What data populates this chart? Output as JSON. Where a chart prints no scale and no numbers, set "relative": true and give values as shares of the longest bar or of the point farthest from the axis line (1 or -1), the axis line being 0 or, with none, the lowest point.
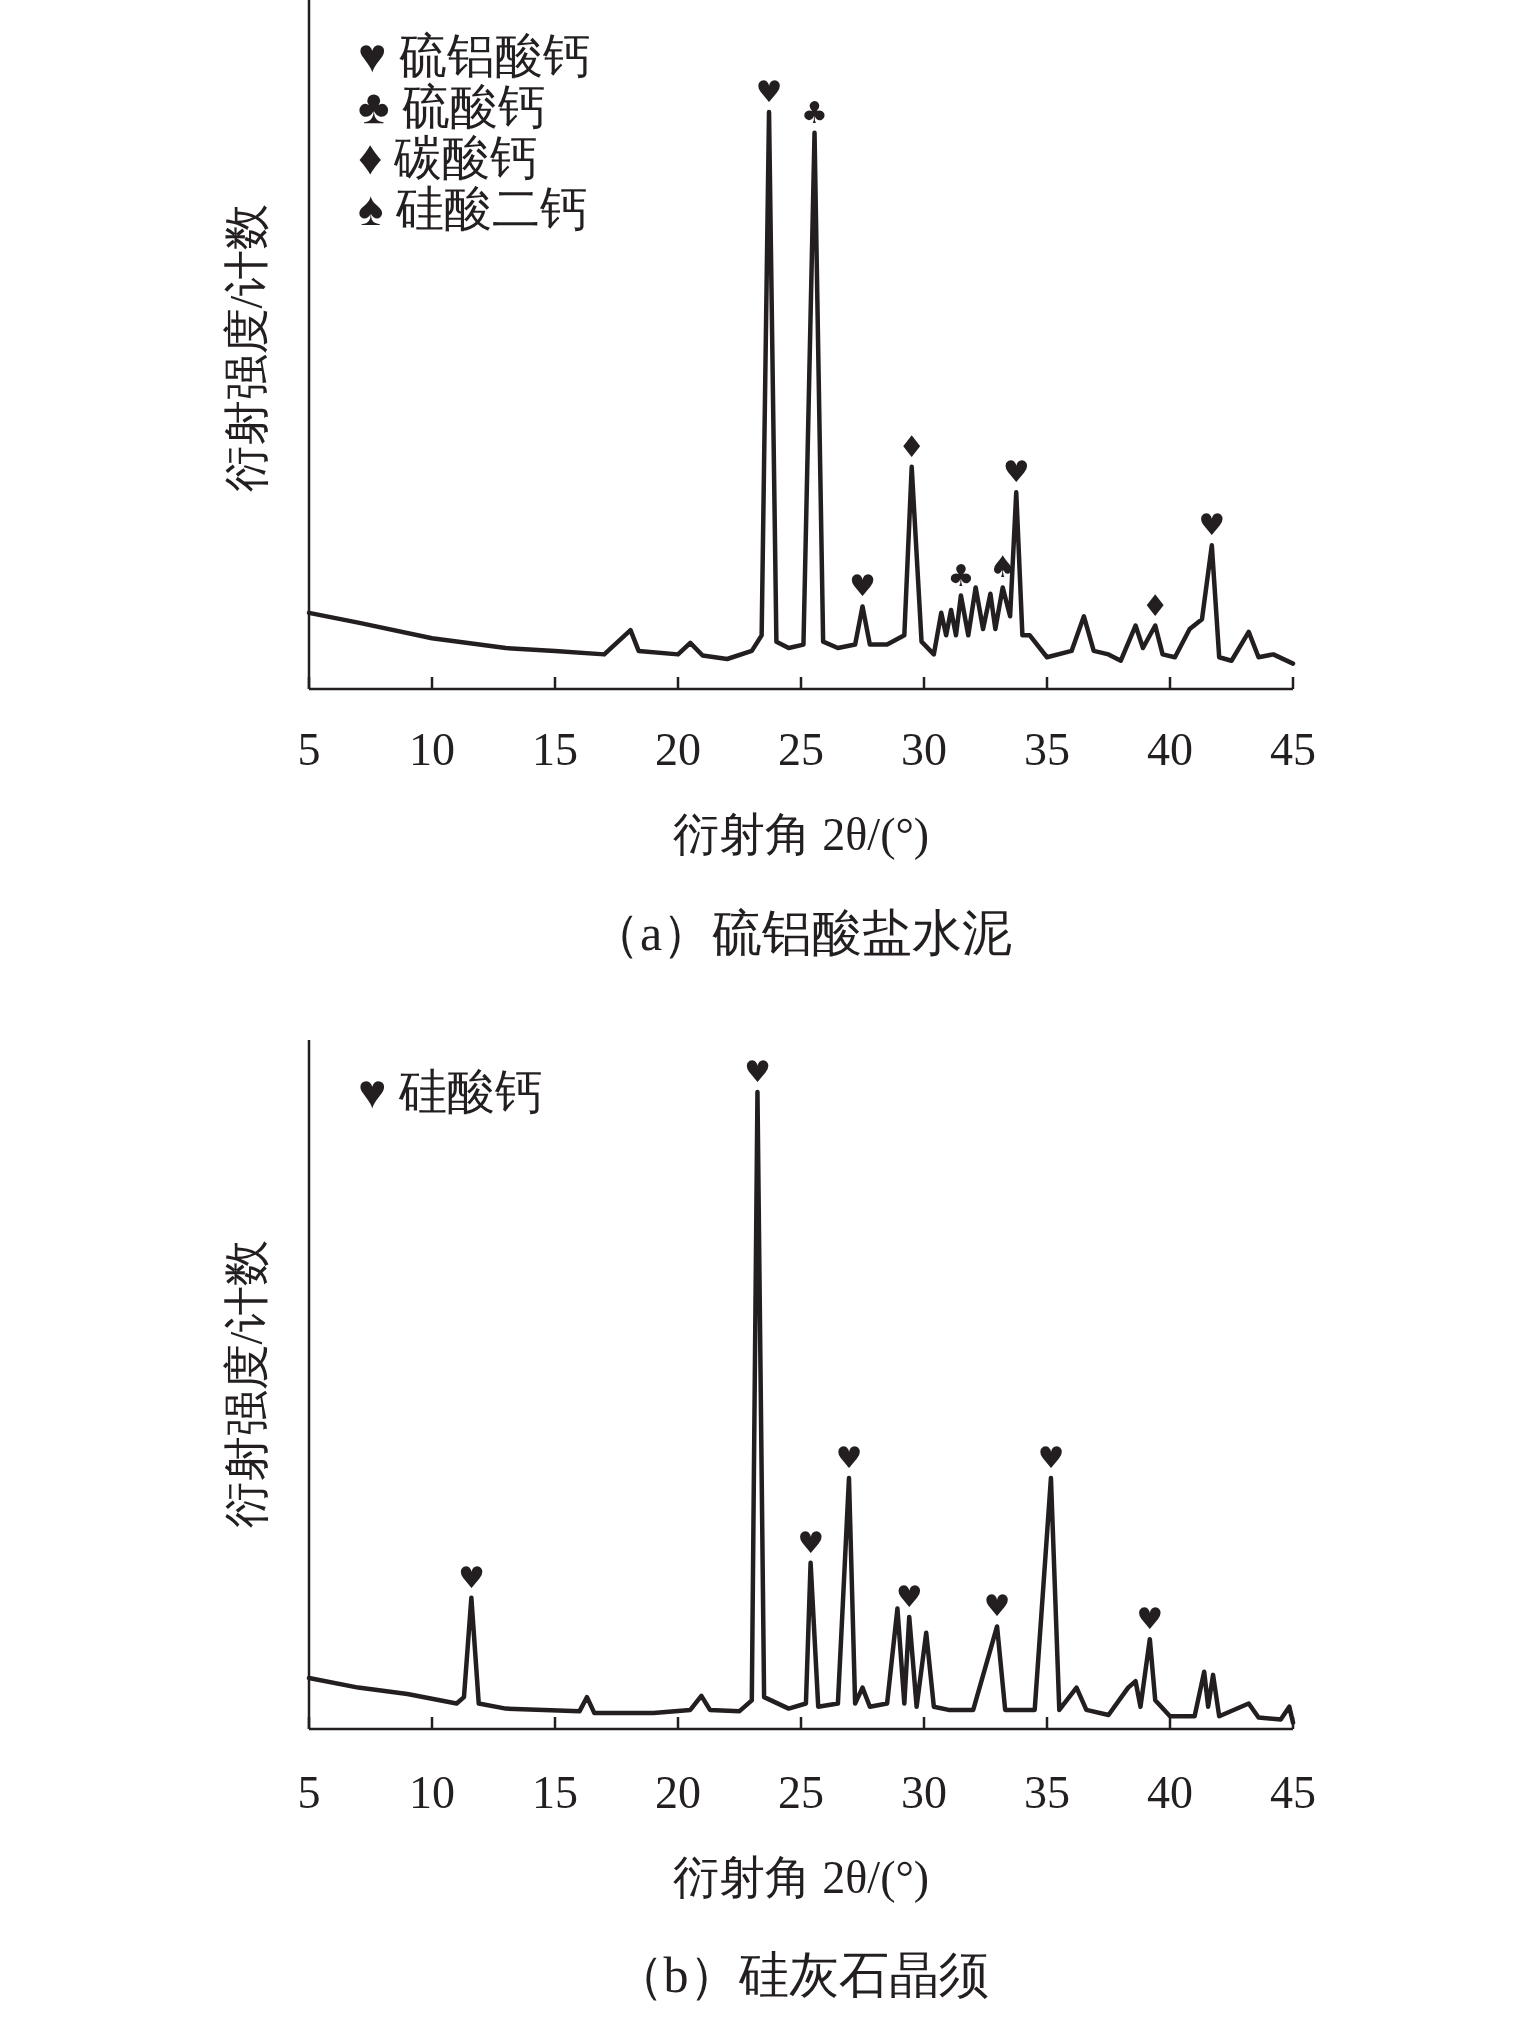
{
  "chart_data": [
    {
      "type": "line",
      "title": "（a）硫铝酸盐水泥",
      "xlabel": "衍射角 2θ/(°)",
      "ylabel": "衍射强度/计数",
      "relative": true,
      "xlim": [
        5,
        45
      ],
      "xticks": [
        5,
        10,
        15,
        20,
        25,
        30,
        35,
        40,
        45
      ],
      "series": [
        {
          "color": "#231f20",
          "x": [
            5,
            7,
            10,
            13,
            15,
            17,
            18.07,
            18.4,
            20,
            20.5,
            21,
            22,
            23,
            23.4,
            23.7,
            24.0,
            24.5,
            25.1,
            25.55,
            25.9,
            26.5,
            27.2,
            27.5,
            27.8,
            28.5,
            29.2,
            29.5,
            29.9,
            30.4,
            30.7,
            30.9,
            31.1,
            31.3,
            31.5,
            31.8,
            32.1,
            32.4,
            32.7,
            32.9,
            33.2,
            33.5,
            33.75,
            34.0,
            34.3,
            35,
            36,
            36.5,
            36.9,
            37.5,
            38,
            38.6,
            38.9,
            39.4,
            39.7,
            40.2,
            40.8,
            41.3,
            41.7,
            42.0,
            42.5,
            43.2,
            43.6,
            44.2,
            45
          ],
          "values": [
            0.132,
            0.115,
            0.088,
            0.071,
            0.066,
            0.06,
            0.102,
            0.066,
            0.06,
            0.08,
            0.058,
            0.052,
            0.066,
            0.093,
            1.0,
            0.082,
            0.071,
            0.077,
            0.964,
            0.082,
            0.071,
            0.077,
            0.143,
            0.077,
            0.077,
            0.093,
            0.385,
            0.082,
            0.06,
            0.132,
            0.093,
            0.137,
            0.093,
            0.162,
            0.093,
            0.176,
            0.104,
            0.165,
            0.104,
            0.176,
            0.126,
            0.341,
            0.093,
            0.093,
            0.055,
            0.066,
            0.126,
            0.066,
            0.06,
            0.049,
            0.11,
            0.071,
            0.11,
            0.06,
            0.055,
            0.104,
            0.121,
            0.249,
            0.055,
            0.049,
            0.099,
            0.055,
            0.06,
            0.044
          ]
        }
      ],
      "annotations": [
        "♥ 硫铝酸钙",
        "♣ 硫酸钙",
        "♦ 碳酸钙",
        "♠ 硅酸二钙",
        {
          "text": "♥",
          "x": 23.7,
          "y": 1.0
        },
        {
          "text": "♣",
          "x": 25.55,
          "y": 0.964
        },
        {
          "text": "♥",
          "x": 27.5,
          "y": 0.143
        },
        {
          "text": "♦",
          "x": 29.5,
          "y": 0.385
        },
        {
          "text": "♣",
          "x": 31.5,
          "y": 0.162
        },
        {
          "text": "♠",
          "x": 33.2,
          "y": 0.176
        },
        {
          "text": "♥",
          "x": 33.75,
          "y": 0.341
        },
        {
          "text": "♦",
          "x": 39.4,
          "y": 0.11
        },
        {
          "text": "♥",
          "x": 41.7,
          "y": 0.249
        }
      ]
    },
    {
      "type": "line",
      "title": "（b）硅灰石晶须",
      "xlabel": "衍射角 2θ/(°)",
      "ylabel": "衍射强度/计数",
      "relative": true,
      "xlim": [
        5,
        45
      ],
      "xticks": [
        5,
        10,
        15,
        20,
        25,
        30,
        35,
        40,
        45
      ],
      "series": [
        {
          "color": "#231f20",
          "x": [
            5,
            7,
            9,
            11,
            11.3,
            11.6,
            11.9,
            13,
            16,
            16.3,
            16.6,
            19,
            20.5,
            20.95,
            21.3,
            22.5,
            23.0,
            23.23,
            23.5,
            24.5,
            25.2,
            25.39,
            25.7,
            26.5,
            26.7,
            26.95,
            27.2,
            27.5,
            27.8,
            28.5,
            28.92,
            29.2,
            29.4,
            29.7,
            30.09,
            30.4,
            31,
            32,
            32.97,
            33.3,
            34.5,
            35.16,
            35.5,
            36.2,
            36.6,
            37.5,
            38.3,
            38.6,
            38.8,
            39.18,
            39.4,
            40,
            41,
            41.39,
            41.55,
            41.75,
            42,
            43.2,
            43.6,
            44.5,
            44.85,
            45
          ],
          "values": [
            0.08,
            0.065,
            0.055,
            0.04,
            0.05,
            0.206,
            0.04,
            0.032,
            0.028,
            0.05,
            0.025,
            0.025,
            0.03,
            0.052,
            0.03,
            0.028,
            0.045,
            1.0,
            0.05,
            0.032,
            0.04,
            0.261,
            0.035,
            0.04,
            0.196,
            0.394,
            0.04,
            0.065,
            0.035,
            0.04,
            0.189,
            0.04,
            0.176,
            0.035,
            0.151,
            0.035,
            0.03,
            0.03,
            0.161,
            0.03,
            0.03,
            0.394,
            0.03,
            0.065,
            0.03,
            0.022,
            0.065,
            0.075,
            0.035,
            0.141,
            0.045,
            0.02,
            0.02,
            0.09,
            0.035,
            0.085,
            0.02,
            0.04,
            0.018,
            0.015,
            0.035,
            0.01
          ]
        }
      ],
      "annotations": [
        "♥ 硅酸钙",
        {
          "text": "♥",
          "x": 11.6,
          "y": 0.206
        },
        {
          "text": "♥",
          "x": 23.23,
          "y": 1.0
        },
        {
          "text": "♥",
          "x": 25.39,
          "y": 0.261
        },
        {
          "text": "♥",
          "x": 26.95,
          "y": 0.394
        },
        {
          "text": "♥",
          "x": 29.4,
          "y": 0.176
        },
        {
          "text": "♥",
          "x": 32.97,
          "y": 0.161
        },
        {
          "text": "♥",
          "x": 35.16,
          "y": 0.394
        },
        {
          "text": "♥",
          "x": 39.18,
          "y": 0.141
        }
      ]
    }
  ]
}
